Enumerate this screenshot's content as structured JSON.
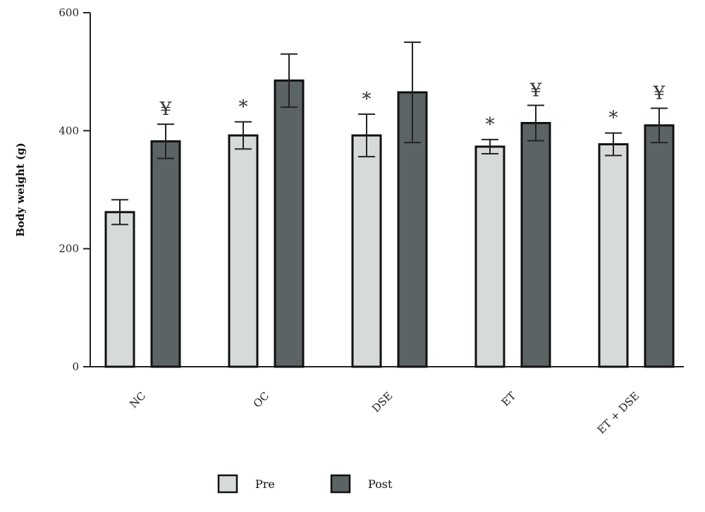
{
  "chart_data": {
    "type": "bar",
    "ylabel": "Body weight (g)",
    "xlabel": "",
    "ylim": [
      0,
      600
    ],
    "yticks": [
      0,
      200,
      400,
      600
    ],
    "categories": [
      "NC",
      "OC",
      "DSE",
      "ET",
      "ET + DSE"
    ],
    "series": [
      {
        "name": "Pre",
        "color": "#d6dbd8",
        "values": [
          262,
          392,
          392,
          373,
          377
        ],
        "errors": [
          21,
          23,
          36,
          12,
          19
        ],
        "annotations": [
          "",
          "*",
          "*",
          "*",
          "*"
        ]
      },
      {
        "name": "Post",
        "color": "#5b6364",
        "values": [
          382,
          485,
          465,
          413,
          409
        ],
        "errors": [
          29,
          45,
          85,
          30,
          29
        ],
        "annotations": [
          "¥",
          "",
          "",
          "¥",
          "¥"
        ]
      }
    ],
    "legend": {
      "placement": "bottom-center"
    },
    "grid": false
  }
}
